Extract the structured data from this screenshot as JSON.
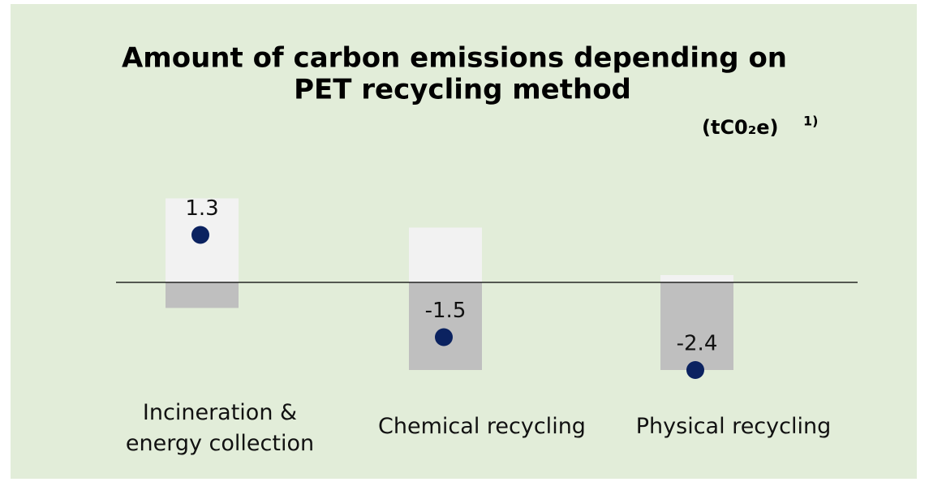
{
  "chart_data": {
    "type": "floating_bar_dot",
    "title": [
      "Amount of carbon emissions depending on",
      "PET recycling method"
    ],
    "unit": "(tC0₂e)",
    "footnote": "1)",
    "categories": [
      "Incineration & energy collection",
      "Chemical recycling",
      "Physical recycling"
    ],
    "values": [
      1.3,
      -1.5,
      -2.4
    ],
    "color": "#0b2260",
    "series": [
      {
        "color": "#f2f2f2",
        "values": [
          2.3,
          1.5,
          0.2
        ]
      },
      {
        "color": "#bfbfbf",
        "values": [
          -0.7,
          -2.4,
          -2.4
        ]
      }
    ],
    "ylim": [
      -3,
      3
    ]
  }
}
